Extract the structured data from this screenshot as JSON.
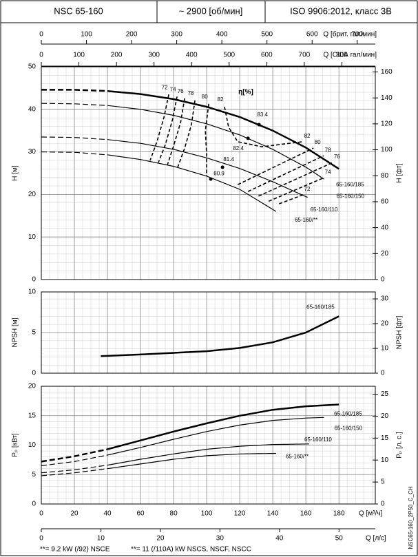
{
  "header": [
    "NSC 65-160",
    "~ 2900 [об/мин]",
    "ISO 9906:2012, класс 3B"
  ],
  "chart_data": [
    {
      "type": "line",
      "ylabel": "H [м]",
      "y2label": "H [фт]",
      "xlim": [
        0,
        202
      ],
      "ylim": [
        0,
        50
      ],
      "yticks": [
        0,
        10,
        20,
        30,
        40,
        50
      ],
      "y2lim": [
        0,
        164
      ],
      "y2ticks": [
        0,
        20,
        40,
        60,
        80,
        100,
        120,
        140,
        160
      ],
      "grid": true,
      "minor_xstep": 5,
      "minor_ystep": 2,
      "top_axes": [
        {
          "label": "Q [брит. гал/мин]",
          "xlim": [
            0,
            740
          ],
          "xticks": [
            0,
            100,
            200,
            300,
            400,
            500,
            600,
            700
          ]
        },
        {
          "label": "Q [США гал/мин]",
          "xlim": [
            0,
            889
          ],
          "xticks": [
            0,
            100,
            200,
            300,
            400,
            500,
            600,
            700,
            800
          ]
        }
      ],
      "series": [
        {
          "name": "65-160/185",
          "color": "#000",
          "width": 2.5,
          "dashed_segments": 2,
          "x": [
            0,
            20,
            40,
            60,
            80,
            100,
            120,
            140,
            160,
            180
          ],
          "values": [
            44.6,
            44.6,
            44.3,
            43.6,
            42.4,
            40.6,
            38.2,
            35.0,
            31.0,
            26.0
          ]
        },
        {
          "name": "65-160/150",
          "color": "#000",
          "width": 1.2,
          "dashed_segments": 2,
          "x": [
            0,
            20,
            40,
            60,
            80,
            100,
            120,
            140,
            160,
            171
          ],
          "values": [
            41.4,
            41.3,
            40.9,
            40.0,
            38.6,
            36.6,
            34.0,
            30.6,
            26.4,
            23.6
          ]
        },
        {
          "name": "65-160/110",
          "color": "#000",
          "width": 1.2,
          "dashed_segments": 2,
          "x": [
            0,
            20,
            40,
            60,
            80,
            100,
            120,
            140,
            161
          ],
          "values": [
            33.5,
            33.4,
            32.9,
            32.0,
            30.6,
            28.6,
            26.1,
            23.0,
            19.3
          ]
        },
        {
          "name": "65-160/**",
          "color": "#000",
          "width": 1.2,
          "dashed_segments": 2,
          "x": [
            0,
            20,
            40,
            60,
            80,
            100,
            120,
            142
          ],
          "values": [
            30.0,
            29.9,
            29.3,
            28.2,
            26.6,
            24.3,
            21.2,
            16.0
          ]
        }
      ],
      "efficiency_title": "η[%]",
      "efficiency_lines": [
        {
          "name": "72",
          "x": [
            77.1,
            74.2,
            70.0,
            65.8,
            null,
            143.8,
            158.3
          ],
          "values": [
            43.5,
            38.2,
            32.5,
            28.0,
            null,
            17.8,
            19.9
          ]
        },
        {
          "name": "74",
          "x": [
            82.1,
            79.2,
            75.0,
            70.8,
            null,
            137.5,
            170.8
          ],
          "values": [
            43.0,
            37.4,
            31.7,
            27.5,
            null,
            18.4,
            23.9
          ]
        },
        {
          "name": "76",
          "x": [
            86.7,
            84.2,
            80.0,
            76.3,
            null,
            131.3,
            176.3
          ],
          "values": [
            42.6,
            36.9,
            31.4,
            27.0,
            null,
            19.6,
            27.5
          ]
        },
        {
          "name": "78",
          "x": [
            92.9,
            90.8,
            86.7,
            82.5,
            null,
            125.0,
            170.8
          ],
          "values": [
            42.1,
            36.4,
            30.9,
            26.4,
            null,
            20.7,
            29.1
          ]
        },
        {
          "name": "80",
          "x": [
            101.3,
            99.2,
            100.0,
            100.0,
            null,
            118.8,
            164.6
          ],
          "values": [
            41.3,
            35.0,
            29.3,
            24.4,
            null,
            22.3,
            30.9
          ]
        },
        {
          "name": "82",
          "x": [
            110.8,
            113.3,
            118.8,
            133.3,
            150.0,
            158.3
          ],
          "values": [
            40.6,
            35.8,
            32.4,
            31.2,
            32.0,
            32.4
          ]
        }
      ],
      "points": [
        {
          "x": 131.7,
          "y": 36.4,
          "efficiency": 83.4
        },
        {
          "x": 125.0,
          "y": 33.2,
          "efficiency": 82.4
        },
        {
          "x": 109.6,
          "y": 26.4,
          "efficiency": 81.4
        },
        {
          "x": 102.5,
          "y": 23.6,
          "efficiency": 80.9
        }
      ]
    },
    {
      "type": "line",
      "ylabel": "NPSH [м]",
      "y2label": "NPSH [фт]",
      "xlim": [
        0,
        202
      ],
      "ylim": [
        0,
        10
      ],
      "yticks": [
        0,
        5,
        10
      ],
      "y2lim": [
        0,
        32.8
      ],
      "y2ticks": [
        0,
        10,
        20,
        30
      ],
      "grid": true,
      "minor_xstep": 5,
      "minor_ystep": 1,
      "series": [
        {
          "name": "65-160/185",
          "color": "#000",
          "width": 2.5,
          "dashed_segments": 0,
          "x": [
            36,
            60,
            80,
            100,
            120,
            140,
            160,
            180
          ],
          "values": [
            2.1,
            2.3,
            2.5,
            2.7,
            3.1,
            3.8,
            5.0,
            7.0
          ]
        }
      ]
    },
    {
      "type": "line",
      "ylabel": "Pₚ [кВт]",
      "y2label": "Pₚ [л. с.]",
      "xlabel": "Q [м³/ч]",
      "xlim": [
        0,
        202
      ],
      "xticks": [
        0,
        20,
        40,
        60,
        80,
        100,
        120,
        140,
        160,
        180
      ],
      "ylim": [
        0,
        20
      ],
      "yticks": [
        0,
        5,
        10,
        15,
        20
      ],
      "y2lim": [
        0,
        26.8
      ],
      "y2ticks": [
        0,
        5,
        10,
        15,
        20,
        25
      ],
      "grid": true,
      "minor_xstep": 5,
      "minor_ystep": 1,
      "bottom_axes": [
        {
          "label": "Q [л/с]",
          "xlim": [
            0,
            56.1
          ],
          "xticks": [
            0,
            10,
            20,
            30,
            40,
            50
          ]
        }
      ],
      "series": [
        {
          "name": "65-160/185",
          "color": "#000",
          "width": 2.5,
          "dashed_segments": 2,
          "x": [
            0,
            20,
            40,
            60,
            80,
            100,
            120,
            140,
            160,
            180
          ],
          "values": [
            7.2,
            8.1,
            9.3,
            10.8,
            12.3,
            13.7,
            15.0,
            16.0,
            16.6,
            16.9
          ]
        },
        {
          "name": "65-160/150",
          "color": "#000",
          "width": 1.2,
          "dashed_segments": 2,
          "x": [
            0,
            20,
            40,
            60,
            80,
            100,
            120,
            140,
            160,
            171
          ],
          "values": [
            6.5,
            7.2,
            8.3,
            9.6,
            11.0,
            12.3,
            13.4,
            14.2,
            14.6,
            14.7
          ]
        },
        {
          "name": "65-160/110",
          "color": "#000",
          "width": 1.2,
          "dashed_segments": 2,
          "x": [
            0,
            20,
            40,
            60,
            80,
            100,
            120,
            140,
            162
          ],
          "values": [
            5.3,
            5.8,
            6.6,
            7.6,
            8.5,
            9.3,
            9.8,
            10.1,
            10.2
          ]
        },
        {
          "name": "65-160/**",
          "color": "#000",
          "width": 1.2,
          "dashed_segments": 2,
          "x": [
            0,
            20,
            40,
            60,
            80,
            100,
            120,
            142
          ],
          "values": [
            4.8,
            5.3,
            6.0,
            6.8,
            7.6,
            8.2,
            8.5,
            8.6
          ]
        }
      ]
    }
  ],
  "footnotes": [
    "**= 9.2 kW (/92) NSCE",
    "**= 11 (/110A) kW NSCS, NSCF, NSCC"
  ],
  "side_label": "NSC65-160_2P50_C_CH"
}
